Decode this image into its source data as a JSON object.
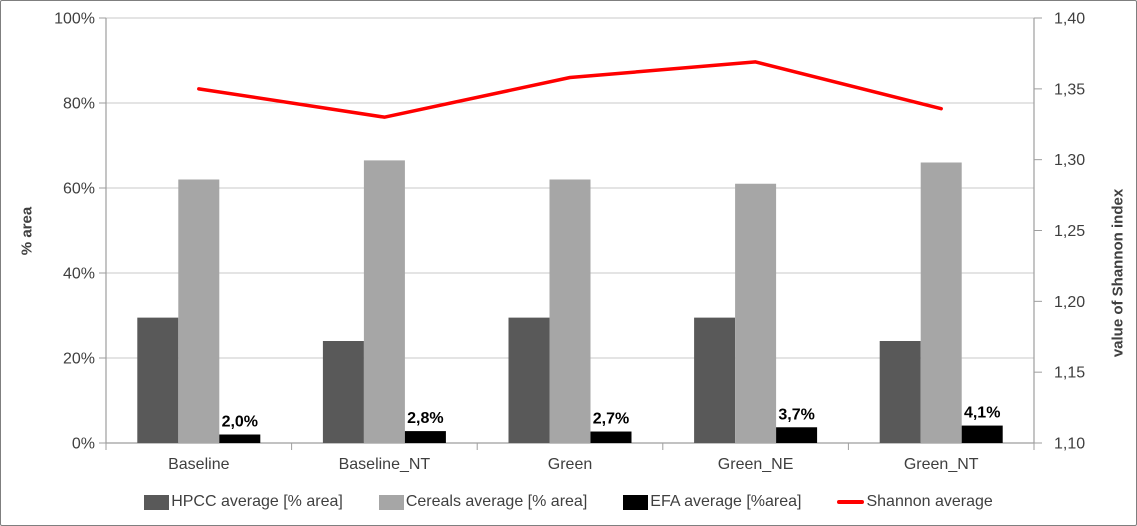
{
  "chart_data": {
    "type": "bar",
    "subtype": "grouped-bars-with-secondary-axis-line",
    "title": "",
    "grid": true,
    "legend_position": "bottom",
    "categories": [
      "Baseline",
      "Baseline_NT",
      "Green",
      "Green_NE",
      "Green_NT"
    ],
    "series": [
      {
        "name": "HPCC average [% area]",
        "kind": "bar",
        "axis": "left",
        "color": "#595959",
        "values": [
          29.5,
          24.0,
          29.5,
          29.5,
          24.0
        ]
      },
      {
        "name": "Cereals average [% area]",
        "kind": "bar",
        "axis": "left",
        "color": "#a6a6a6",
        "values": [
          62.0,
          66.5,
          62.0,
          61.0,
          66.0
        ]
      },
      {
        "name": "EFA average [%area]",
        "kind": "bar",
        "axis": "left",
        "color": "#000000",
        "values": [
          2.0,
          2.8,
          2.7,
          3.7,
          4.1
        ],
        "data_labels": [
          "2,0%",
          "2,8%",
          "2,7%",
          "3,7%",
          "4,1%"
        ]
      },
      {
        "name": "Shannon average",
        "kind": "line",
        "axis": "right",
        "color": "#ff0000",
        "values": [
          1.35,
          1.33,
          1.358,
          1.369,
          1.336
        ]
      }
    ],
    "left_axis": {
      "label": "% area",
      "min": 0,
      "max": 100,
      "tick_labels": [
        "100%",
        "80%",
        "60%",
        "40%",
        "20%",
        "0%"
      ]
    },
    "right_axis": {
      "label": "value of Shannon index",
      "min": 1.1,
      "max": 1.4,
      "tick_labels": [
        "1,40",
        "1,35",
        "1,30",
        "1,25",
        "1,20",
        "1,15",
        "1,10"
      ]
    },
    "colors": {
      "gridline": "#c8c8c8",
      "axis_line": "#9e9e9e",
      "tick_text": "#3f3f3f",
      "data_label_text": "#000000",
      "frame_border": "#7f7f7f"
    }
  }
}
